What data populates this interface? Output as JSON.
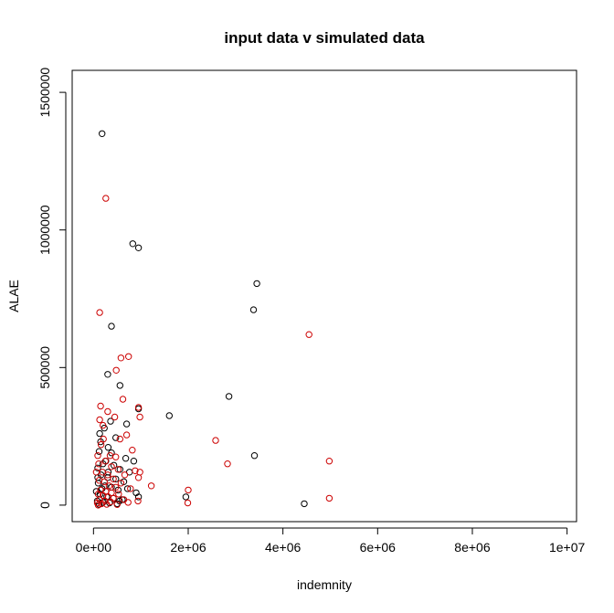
{
  "chart_data": {
    "type": "scatter",
    "title": "input data v simulated data",
    "xlabel": "indemnity",
    "ylabel": "ALAE",
    "xlim": [
      -450000,
      10200000
    ],
    "ylim": [
      -60000,
      1580000
    ],
    "x_ticks": [
      0,
      2000000,
      4000000,
      6000000,
      8000000,
      10000000
    ],
    "x_tick_labels": [
      "0e+00",
      "2e+06",
      "4e+06",
      "6e+06",
      "8e+06",
      "1e+07"
    ],
    "y_ticks": [
      0,
      500000,
      1000000,
      1500000
    ],
    "y_tick_labels": [
      "0",
      "500000",
      "1000000",
      "1500000"
    ],
    "grid": false,
    "legend": "none",
    "series": [
      {
        "color": "#000000",
        "points": [
          [
            180000,
            1350000
          ],
          [
            830000,
            950000
          ],
          [
            950000,
            935000
          ],
          [
            3450000,
            805000
          ],
          [
            3380000,
            710000
          ],
          [
            380000,
            650000
          ],
          [
            300000,
            475000
          ],
          [
            560000,
            435000
          ],
          [
            2860000,
            395000
          ],
          [
            1600000,
            325000
          ],
          [
            3400000,
            180000
          ],
          [
            4450000,
            5000
          ],
          [
            950000,
            350000
          ],
          [
            360000,
            305000
          ],
          [
            700000,
            295000
          ],
          [
            230000,
            280000
          ],
          [
            470000,
            245000
          ],
          [
            150000,
            230000
          ],
          [
            310000,
            210000
          ],
          [
            120000,
            195000
          ],
          [
            680000,
            170000
          ],
          [
            850000,
            160000
          ],
          [
            200000,
            150000
          ],
          [
            430000,
            145000
          ],
          [
            90000,
            135000
          ],
          [
            560000,
            130000
          ],
          [
            760000,
            120000
          ],
          [
            160000,
            110000
          ],
          [
            300000,
            100000
          ],
          [
            470000,
            95000
          ],
          [
            640000,
            85000
          ],
          [
            100000,
            80000
          ],
          [
            240000,
            70000
          ],
          [
            380000,
            65000
          ],
          [
            520000,
            55000
          ],
          [
            900000,
            45000
          ],
          [
            140000,
            40000
          ],
          [
            280000,
            30000
          ],
          [
            420000,
            25000
          ],
          [
            610000,
            20000
          ],
          [
            80000,
            15000
          ],
          [
            200000,
            10000
          ],
          [
            340000,
            8000
          ],
          [
            500000,
            5000
          ],
          [
            120000,
            3000
          ],
          [
            60000,
            50000
          ],
          [
            260000,
            160000
          ],
          [
            950000,
            30000
          ],
          [
            1950000,
            30000
          ],
          [
            720000,
            60000
          ],
          [
            380000,
            190000
          ],
          [
            130000,
            260000
          ],
          [
            550000,
            15000
          ],
          [
            90000,
            100000
          ],
          [
            310000,
            120000
          ],
          [
            180000,
            60000
          ]
        ]
      },
      {
        "color": "#cc0000",
        "points": [
          [
            260000,
            1115000
          ],
          [
            130000,
            700000
          ],
          [
            4550000,
            620000
          ],
          [
            580000,
            535000
          ],
          [
            740000,
            540000
          ],
          [
            480000,
            490000
          ],
          [
            620000,
            385000
          ],
          [
            150000,
            360000
          ],
          [
            950000,
            355000
          ],
          [
            300000,
            340000
          ],
          [
            450000,
            320000
          ],
          [
            980000,
            320000
          ],
          [
            2580000,
            235000
          ],
          [
            130000,
            310000
          ],
          [
            200000,
            290000
          ],
          [
            700000,
            255000
          ],
          [
            560000,
            240000
          ],
          [
            160000,
            220000
          ],
          [
            820000,
            200000
          ],
          [
            4980000,
            160000
          ],
          [
            2830000,
            150000
          ],
          [
            350000,
            180000
          ],
          [
            470000,
            175000
          ],
          [
            250000,
            160000
          ],
          [
            110000,
            150000
          ],
          [
            380000,
            140000
          ],
          [
            520000,
            130000
          ],
          [
            880000,
            125000
          ],
          [
            980000,
            120000
          ],
          [
            190000,
            120000
          ],
          [
            300000,
            110000
          ],
          [
            660000,
            110000
          ],
          [
            950000,
            100000
          ],
          [
            420000,
            95000
          ],
          [
            120000,
            90000
          ],
          [
            230000,
            85000
          ],
          [
            580000,
            80000
          ],
          [
            1220000,
            70000
          ],
          [
            330000,
            70000
          ],
          [
            470000,
            65000
          ],
          [
            780000,
            60000
          ],
          [
            2000000,
            55000
          ],
          [
            150000,
            55000
          ],
          [
            260000,
            50000
          ],
          [
            380000,
            45000
          ],
          [
            530000,
            40000
          ],
          [
            100000,
            40000
          ],
          [
            200000,
            35000
          ],
          [
            310000,
            30000
          ],
          [
            4980000,
            25000
          ],
          [
            420000,
            25000
          ],
          [
            640000,
            20000
          ],
          [
            130000,
            20000
          ],
          [
            240000,
            15000
          ],
          [
            940000,
            15000
          ],
          [
            360000,
            12000
          ],
          [
            730000,
            10000
          ],
          [
            1990000,
            8000
          ],
          [
            80000,
            8000
          ],
          [
            170000,
            5000
          ],
          [
            280000,
            3000
          ],
          [
            500000,
            2000
          ],
          [
            100000,
            0
          ],
          [
            60000,
            120000
          ],
          [
            210000,
            240000
          ],
          [
            90000,
            180000
          ]
        ]
      }
    ]
  }
}
